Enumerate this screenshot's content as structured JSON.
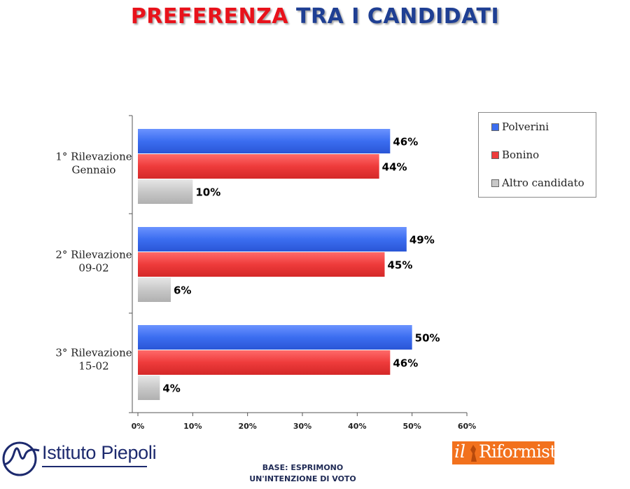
{
  "title": {
    "part1": "PREFERENZA",
    "part2": "TRA I CANDIDATI"
  },
  "chart_data": {
    "type": "bar",
    "orientation": "horizontal",
    "categories": [
      [
        "1° Rilevazione",
        "Gennaio"
      ],
      [
        "2° Rilevazione",
        "09-02"
      ],
      [
        "3° Rilevazione",
        "15-02"
      ]
    ],
    "series": [
      {
        "name": "Polverini",
        "values": [
          46,
          49,
          50
        ],
        "color": "#3b6df0"
      },
      {
        "name": "Bonino",
        "values": [
          44,
          45,
          46
        ],
        "color": "#ee3b3b"
      },
      {
        "name": "Altro candidato",
        "values": [
          10,
          6,
          4
        ],
        "color": "#c8c8c8"
      }
    ],
    "value_format": "{v}%",
    "xlim": [
      0,
      60
    ],
    "xticks": [
      0,
      10,
      20,
      30,
      40,
      50,
      60
    ],
    "xtick_labels": [
      "0%",
      "10%",
      "20%",
      "30%",
      "40%",
      "50%",
      "60%"
    ],
    "legend_position": "top-right",
    "grid": false,
    "title": "",
    "xlabel": "",
    "ylabel": ""
  },
  "legend": {
    "items": [
      "Polverini",
      "Bonino",
      "Altro candidato"
    ]
  },
  "footer": {
    "base_line1": "BASE: ESPRIMONO",
    "base_line2": "UN'INTENZIONE DI VOTO"
  },
  "logos": {
    "piepoli": "Istituto Piepoli",
    "riformista_il": "il",
    "riformista_name": "Riformista"
  }
}
